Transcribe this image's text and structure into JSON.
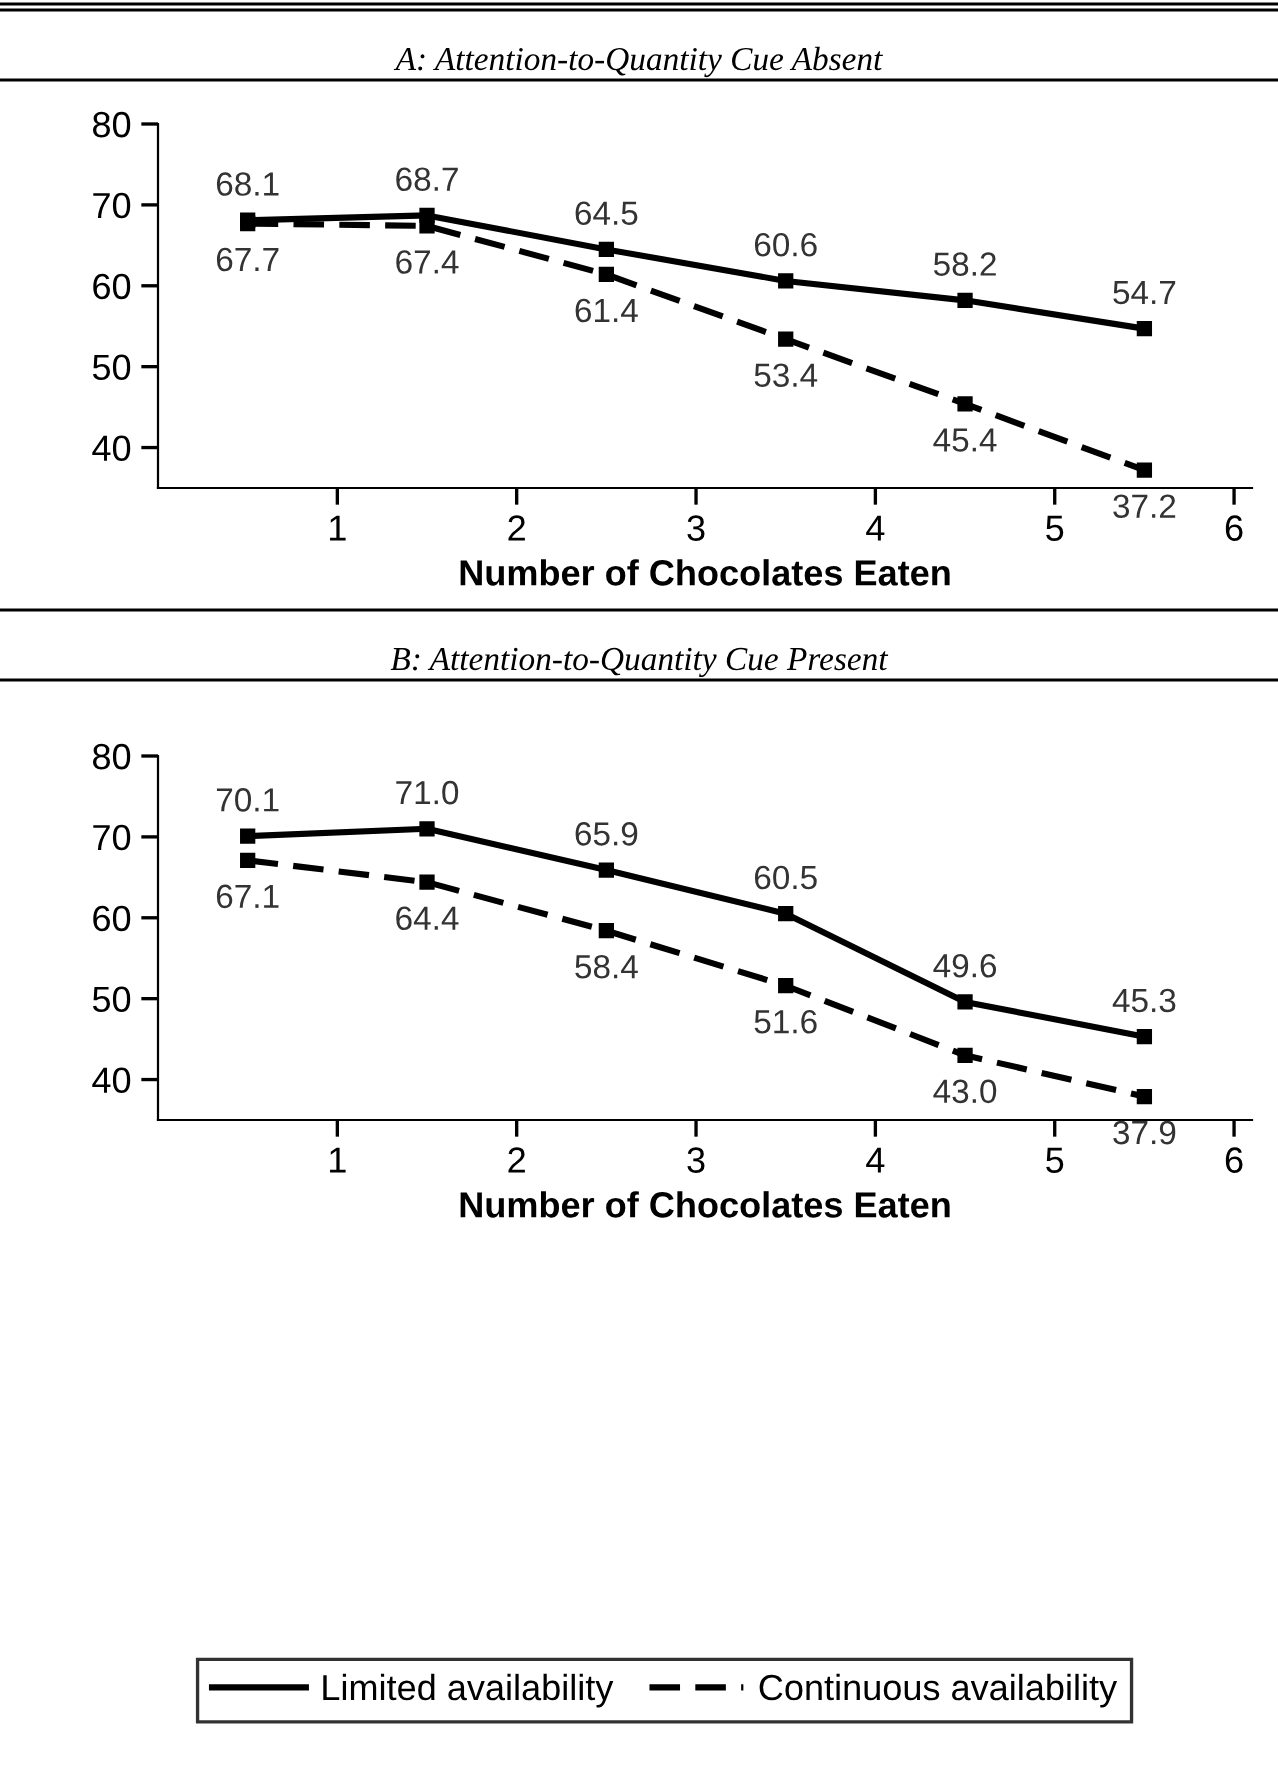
{
  "chart_data": [
    {
      "type": "line",
      "title": "A: Attention-to-Quantity Cue Absent",
      "xlabel": "Number of Chocolates Eaten",
      "x": [
        0.5,
        1.5,
        2.5,
        3.5,
        4.5,
        5.5
      ],
      "xlim": [
        0,
        6.1
      ],
      "xticks": [
        1,
        2,
        3,
        4,
        5,
        6
      ],
      "ylim": [
        35,
        80
      ],
      "yticks": [
        40,
        50,
        60,
        70,
        80
      ],
      "marker": "square",
      "data_labels": true,
      "grid": false,
      "series": [
        {
          "color": "#000000",
          "line_style": "solid",
          "values": [
            68.1,
            68.7,
            64.5,
            60.6,
            58.2,
            54.7
          ]
        },
        {
          "color": "#000000",
          "line_style": "dashed",
          "values": [
            67.7,
            67.4,
            61.4,
            53.4,
            45.4,
            37.2
          ]
        }
      ]
    },
    {
      "type": "line",
      "title": "B: Attention-to-Quantity Cue Present",
      "xlabel": "Number of Chocolates Eaten",
      "x": [
        0.5,
        1.5,
        2.5,
        3.5,
        4.5,
        5.5
      ],
      "xlim": [
        0,
        6.1
      ],
      "xticks": [
        1,
        2,
        3,
        4,
        5,
        6
      ],
      "ylim": [
        35,
        80
      ],
      "yticks": [
        40,
        50,
        60,
        70,
        80
      ],
      "marker": "square",
      "grid": false,
      "legend": "bottom",
      "series": [
        {
          "name": "Limited availability",
          "color": "#000000",
          "line_style": "solid",
          "values": [
            70.1,
            71.0,
            65.9,
            60.5,
            49.6,
            45.3
          ],
          "value_labels": [
            "70.1",
            "71.0",
            "65.9",
            "60.5",
            "49.6",
            "45.3"
          ]
        },
        {
          "name": "Continuous availability",
          "color": "#000000",
          "line_style": "dashed",
          "values": [
            67.1,
            64.4,
            58.4,
            51.6,
            43.0,
            37.9
          ],
          "value_labels": [
            "67.1",
            "64.4",
            "58.4",
            "51.6",
            "43.0",
            "37.9"
          ]
        }
      ]
    }
  ]
}
